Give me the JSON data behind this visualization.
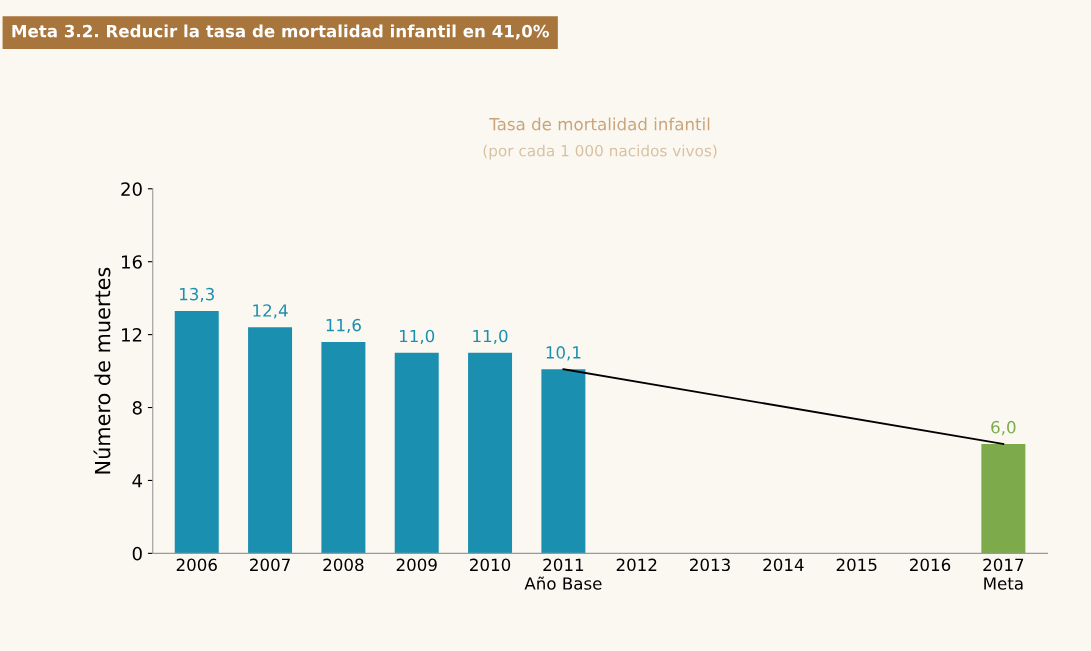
{
  "chart_data": {
    "type": "bar",
    "title": "Tasa de mortalidad infantil",
    "subtitle": "(por cada 1 000 nacidos vivos)",
    "ylabel": "Número de muertes",
    "annotations": [
      "Meta 3.2. Reducir la tasa de mortalidad infantil en 41,0%"
    ],
    "categories": [
      "2006",
      "2007",
      "2008",
      "2009",
      "2010",
      "2011\nAño Base",
      "2012",
      "2013",
      "2014",
      "2015",
      "2016",
      "2017\nMeta"
    ],
    "ylim": [
      0,
      20
    ],
    "yticks": [
      0,
      4,
      8,
      12,
      16,
      20
    ],
    "grid": false,
    "series": [
      {
        "values": [
          13.3,
          12.4,
          11.6,
          11.0,
          11.0,
          10.1,
          null,
          null,
          null,
          null,
          null,
          6.0
        ],
        "colors": [
          "#1b8fb0",
          "#1b8fb0",
          "#1b8fb0",
          "#1b8fb0",
          "#1b8fb0",
          "#1b8fb0",
          "#1b8fb0",
          "#1b8fb0",
          "#1b8fb0",
          "#1b8fb0",
          "#1b8fb0",
          "#7daa4a"
        ],
        "value_labels": [
          "13,3",
          "12,4",
          "11,6",
          "11,0",
          "11,0",
          "10,1",
          null,
          null,
          null,
          null,
          null,
          "6,0"
        ]
      },
      {
        "type": "line",
        "color": "#000000",
        "x": [
          "2011\nAño Base",
          "2017\nMeta"
        ],
        "values": [
          10.1,
          6.0
        ]
      }
    ]
  }
}
